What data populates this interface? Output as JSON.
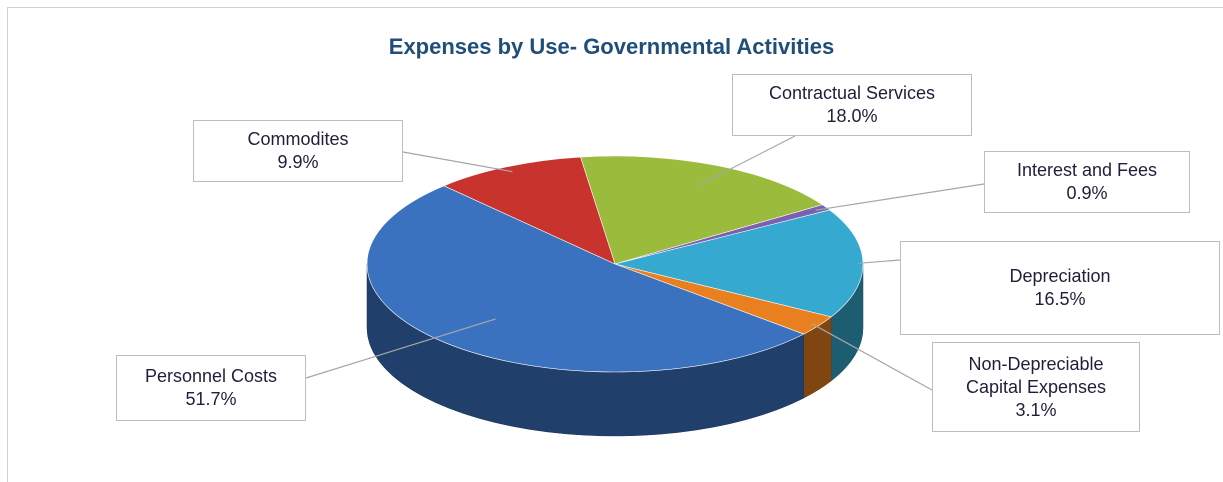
{
  "chart_data": {
    "type": "pie",
    "title": "Expenses by Use- Governmental Activities",
    "slices": [
      {
        "name": "Contractual Services",
        "name_lines": [
          "Contractual Services"
        ],
        "value": 18.0,
        "label": "18.0%",
        "color": "#9bbb3c"
      },
      {
        "name": "Interest and Fees",
        "name_lines": [
          "Interest and Fees"
        ],
        "value": 0.9,
        "label": "0.9%",
        "color": "#7b5fb0"
      },
      {
        "name": "Depreciation",
        "name_lines": [
          "Depreciation"
        ],
        "value": 16.5,
        "label": "16.5%",
        "color": "#35a9cf"
      },
      {
        "name": "Non-Depreciable Capital Expenses",
        "name_lines": [
          "Non-Depreciable",
          "Capital Expenses"
        ],
        "value": 3.1,
        "label": "3.1%",
        "color": "#e8801f"
      },
      {
        "name": "Personnel Costs",
        "name_lines": [
          "Personnel Costs"
        ],
        "value": 51.7,
        "label": "51.7%",
        "color": "#3a72c0"
      },
      {
        "name": "Commodites",
        "name_lines": [
          "Commodites"
        ],
        "value": 9.9,
        "label": "9.9%",
        "color": "#c8332e"
      }
    ]
  }
}
